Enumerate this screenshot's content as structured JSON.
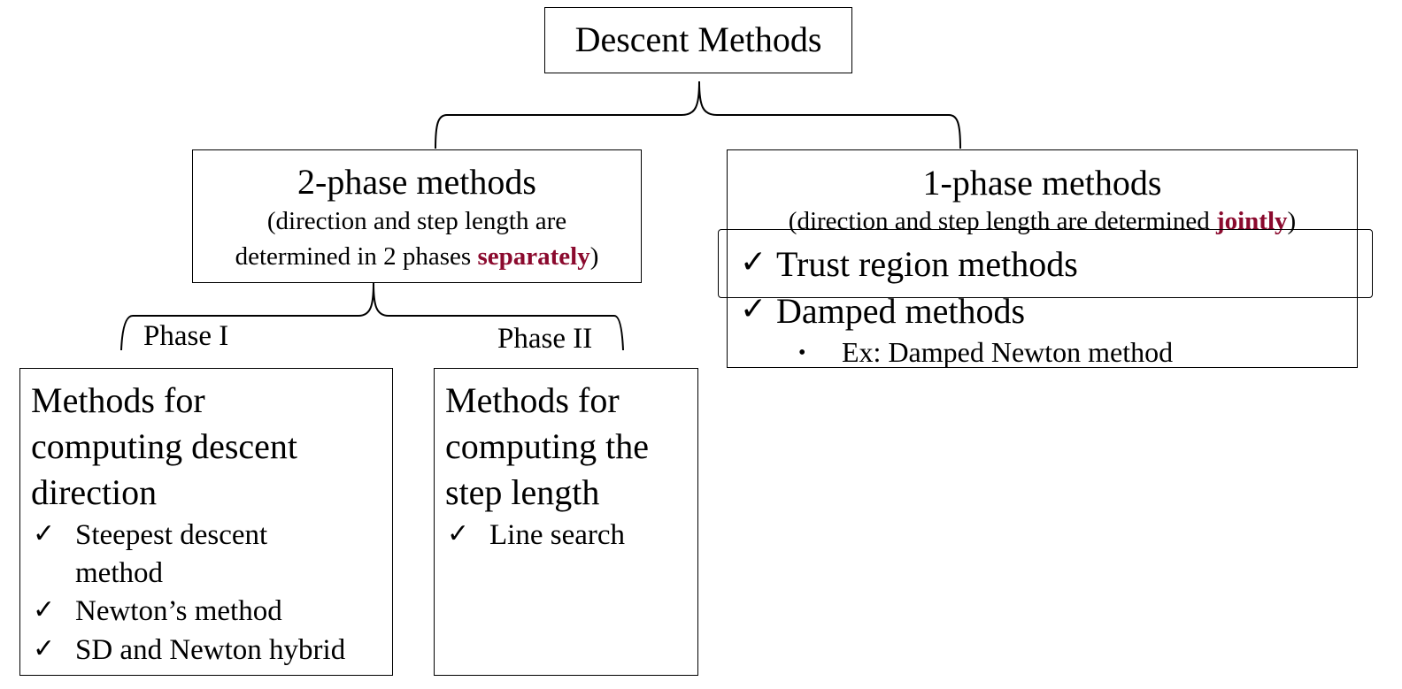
{
  "root": {
    "title": "Descent Methods"
  },
  "two_phase": {
    "title": "2-phase methods",
    "desc_line1": "(direction and step length are",
    "desc_line2_prefix": "determined in 2 phases ",
    "desc_emphasis": "separately",
    "desc_suffix": ")"
  },
  "one_phase": {
    "title": "1-phase methods",
    "desc_prefix": "(direction and step length are determined ",
    "desc_emphasis": "jointly",
    "desc_suffix": ")",
    "items": [
      "Trust region methods",
      "Damped methods"
    ],
    "subitem": "Ex: Damped Newton method"
  },
  "phase1": {
    "label": "Phase I",
    "heading_lines": [
      "Methods for",
      "computing descent",
      "direction"
    ],
    "items": [
      "Steepest descent",
      "method",
      "Newton’s method",
      "SD and Newton hybrid"
    ]
  },
  "phase2": {
    "label": "Phase II",
    "heading_lines": [
      "Methods for",
      "computing the",
      "step length"
    ],
    "items": [
      "Line search"
    ]
  },
  "glyphs": {
    "check": "✓",
    "bullet": "•"
  },
  "colors": {
    "emphasis": "#8b0a2e"
  }
}
